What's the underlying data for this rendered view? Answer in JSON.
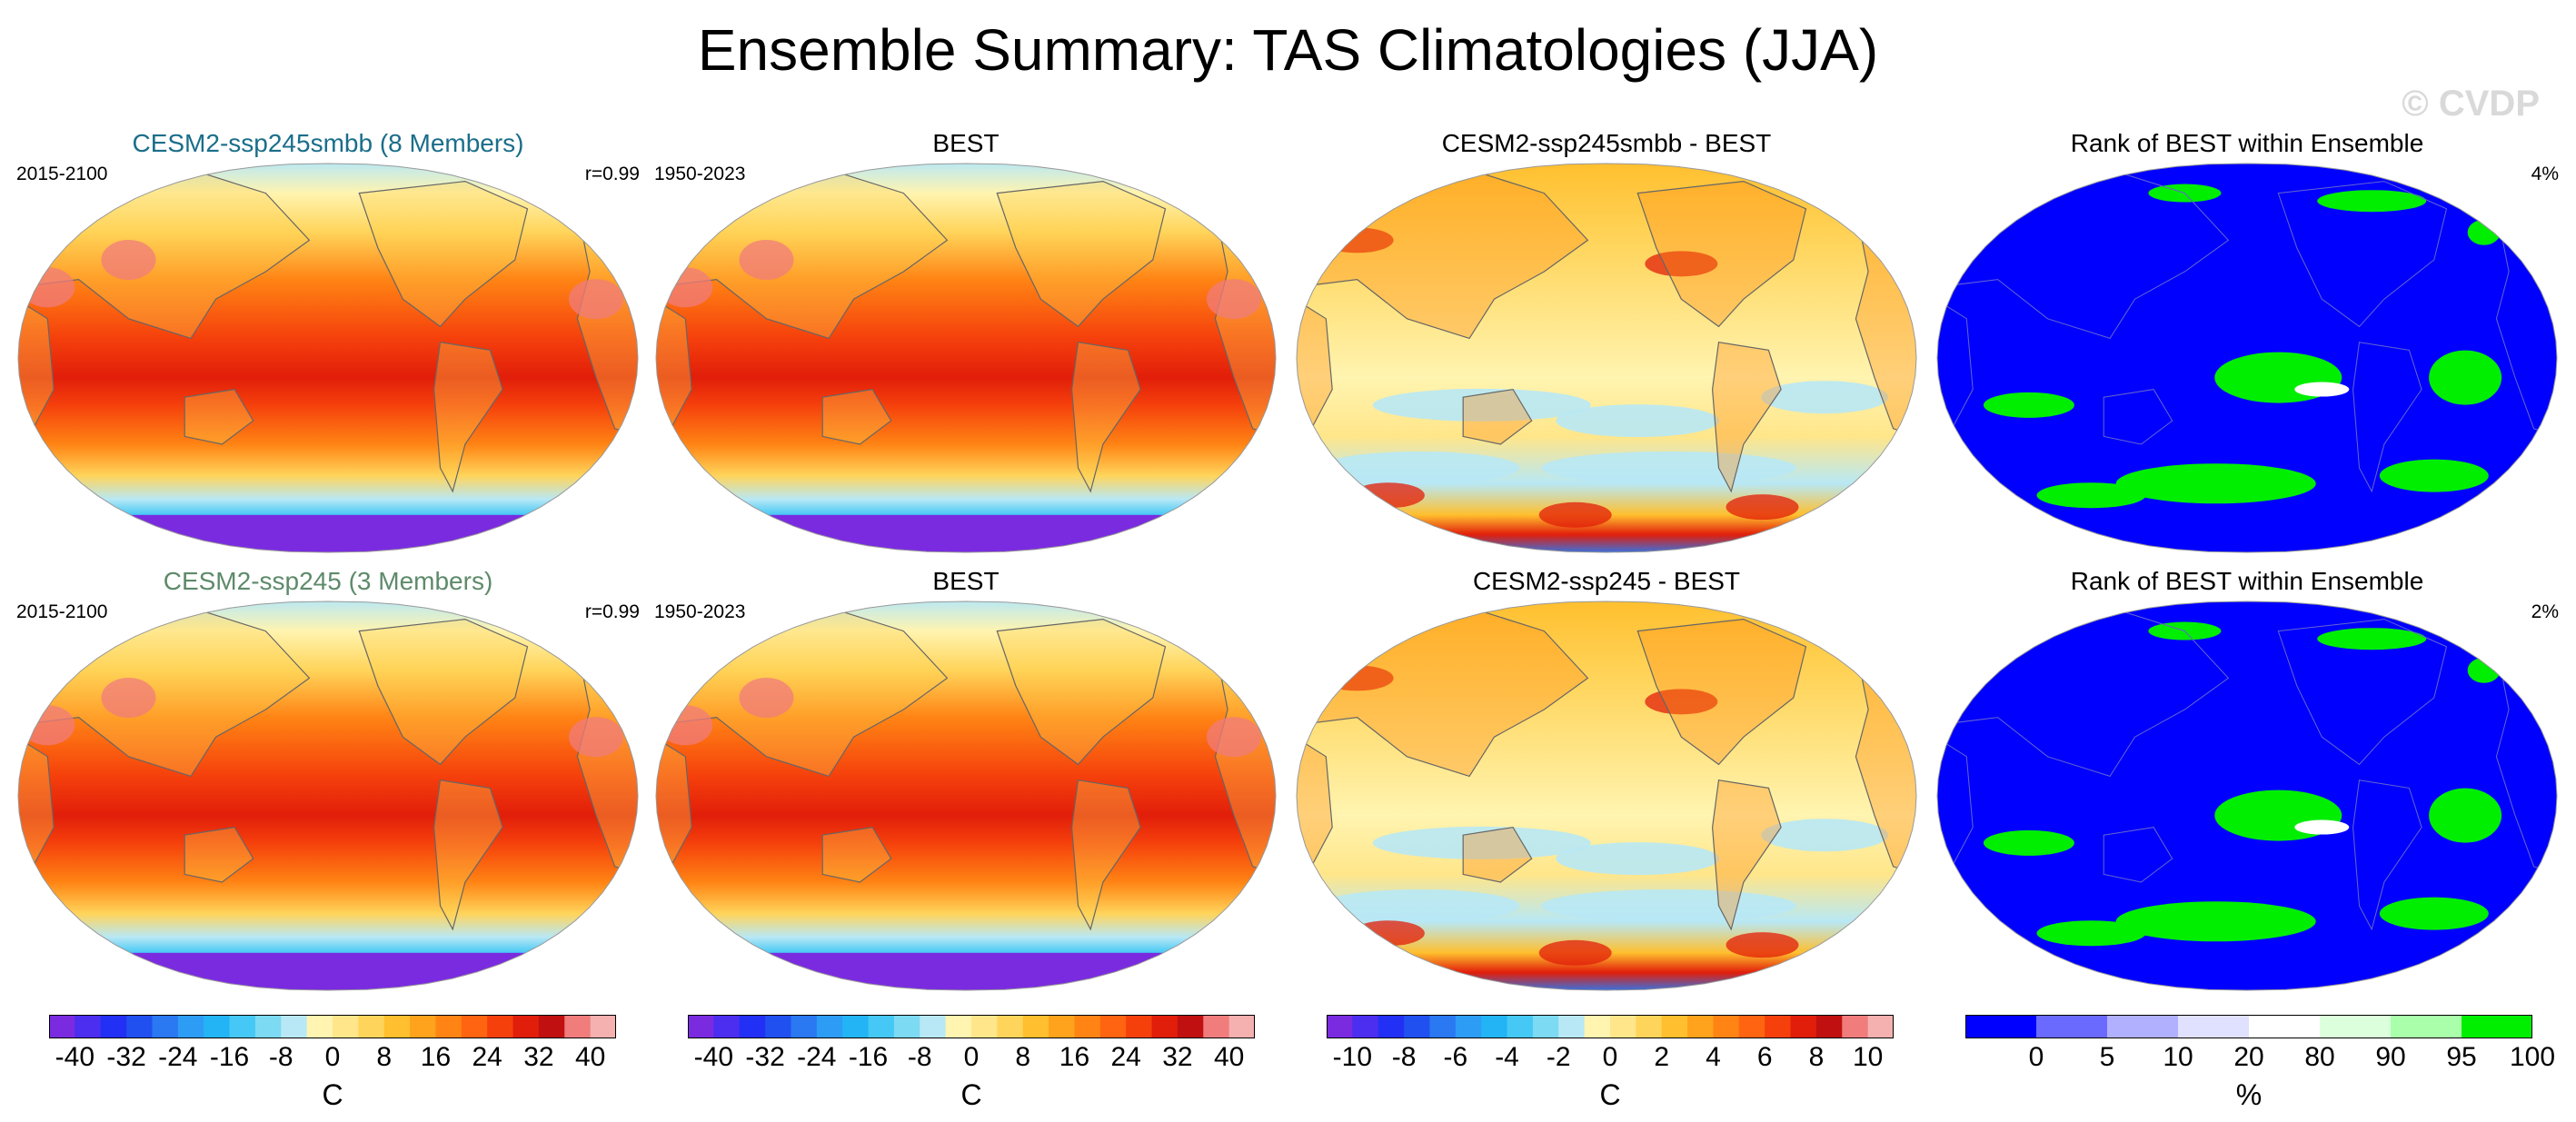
{
  "header": {
    "title": "Ensemble Summary: TAS Climatologies (JJA)",
    "watermark": "© CVDP"
  },
  "colors": {
    "model1_title": "#1a6e8a",
    "model2_title": "#5e8a6a",
    "land_outline": "#666666"
  },
  "rows": [
    {
      "panels": [
        {
          "kind": "temp",
          "title": "CESM2-ssp245smbb (8 Members)",
          "left": "2015-2100",
          "right": "r=0.99"
        },
        {
          "kind": "temp",
          "title": "BEST",
          "left": "1950-2023",
          "right": ""
        },
        {
          "kind": "diff",
          "title": "CESM2-ssp245smbb - BEST",
          "left": "",
          "right": ""
        },
        {
          "kind": "rank",
          "title": "Rank of BEST within Ensemble",
          "left": "",
          "right": "4%"
        }
      ]
    },
    {
      "panels": [
        {
          "kind": "temp",
          "title": "CESM2-ssp245 (3 Members)",
          "left": "2015-2100",
          "right": "r=0.99"
        },
        {
          "kind": "temp",
          "title": "BEST",
          "left": "1950-2023",
          "right": ""
        },
        {
          "kind": "diff",
          "title": "CESM2-ssp245 - BEST",
          "left": "",
          "right": ""
        },
        {
          "kind": "rank",
          "title": "Rank of BEST within Ensemble",
          "left": "",
          "right": "2%"
        }
      ]
    }
  ],
  "chart_data": {
    "type": "heatmap",
    "description_projection": "global map panels (Robinson-like)",
    "colorbars": [
      {
        "name": "temperature",
        "unit": "C",
        "levels": [
          -40,
          -36,
          -32,
          -28,
          -24,
          -20,
          -16,
          -12,
          -8,
          -4,
          0,
          4,
          8,
          12,
          16,
          20,
          24,
          28,
          32,
          36,
          40
        ],
        "tick_labels": [
          "-40",
          "-32",
          "-24",
          "-16",
          "-8",
          "0",
          "8",
          "16",
          "24",
          "32",
          "40"
        ],
        "colors": [
          "#7a2be0",
          "#4b2ef0",
          "#2230f5",
          "#2050f0",
          "#2a78f2",
          "#2c9cf5",
          "#22b4f5",
          "#45c8f5",
          "#7cdaf2",
          "#b8e8f5",
          "#fff4b0",
          "#ffe68a",
          "#ffd45a",
          "#ffbf2e",
          "#ffa21c",
          "#ff8414",
          "#ff6410",
          "#f5400c",
          "#e11e0a",
          "#c01010",
          "#f07c7c",
          "#f5b0b0"
        ]
      },
      {
        "name": "temperature",
        "unit": "C",
        "levels": [
          -40,
          -36,
          -32,
          -28,
          -24,
          -20,
          -16,
          -12,
          -8,
          -4,
          0,
          4,
          8,
          12,
          16,
          20,
          24,
          28,
          32,
          36,
          40
        ],
        "tick_labels": [
          "-40",
          "-32",
          "-24",
          "-16",
          "-8",
          "0",
          "8",
          "16",
          "24",
          "32",
          "40"
        ],
        "colors": [
          "#7a2be0",
          "#4b2ef0",
          "#2230f5",
          "#2050f0",
          "#2a78f2",
          "#2c9cf5",
          "#22b4f5",
          "#45c8f5",
          "#7cdaf2",
          "#b8e8f5",
          "#fff4b0",
          "#ffe68a",
          "#ffd45a",
          "#ffbf2e",
          "#ffa21c",
          "#ff8414",
          "#ff6410",
          "#f5400c",
          "#e11e0a",
          "#c01010",
          "#f07c7c",
          "#f5b0b0"
        ]
      },
      {
        "name": "difference",
        "unit": "C",
        "levels": [
          -10,
          -9,
          -8,
          -7,
          -6,
          -5,
          -4,
          -3,
          -2,
          -1,
          0,
          1,
          2,
          3,
          4,
          5,
          6,
          7,
          8,
          9,
          10
        ],
        "tick_labels": [
          "-10",
          "-8",
          "-6",
          "-4",
          "-2",
          "0",
          "2",
          "4",
          "6",
          "8",
          "10"
        ],
        "colors": [
          "#7a2be0",
          "#4b2ef0",
          "#2230f5",
          "#2050f0",
          "#2a78f2",
          "#2c9cf5",
          "#22b4f5",
          "#45c8f5",
          "#7cdaf2",
          "#b8e8f5",
          "#fff4b0",
          "#ffe68a",
          "#ffd45a",
          "#ffbf2e",
          "#ffa21c",
          "#ff8414",
          "#ff6410",
          "#f5400c",
          "#e11e0a",
          "#c01010",
          "#f07c7c",
          "#f5b0b0"
        ]
      },
      {
        "name": "rank",
        "unit": "%",
        "levels": [
          0,
          5,
          10,
          20,
          80,
          90,
          95,
          100
        ],
        "tick_labels": [
          "0",
          "5",
          "10",
          "20",
          "80",
          "90",
          "95",
          "100"
        ],
        "colors": [
          "#0000ff",
          "#6a6aff",
          "#b0b0ff",
          "#e0e0ff",
          "#ffffff",
          "#dcffdc",
          "#aaffaa",
          "#00ee00"
        ]
      }
    ]
  }
}
